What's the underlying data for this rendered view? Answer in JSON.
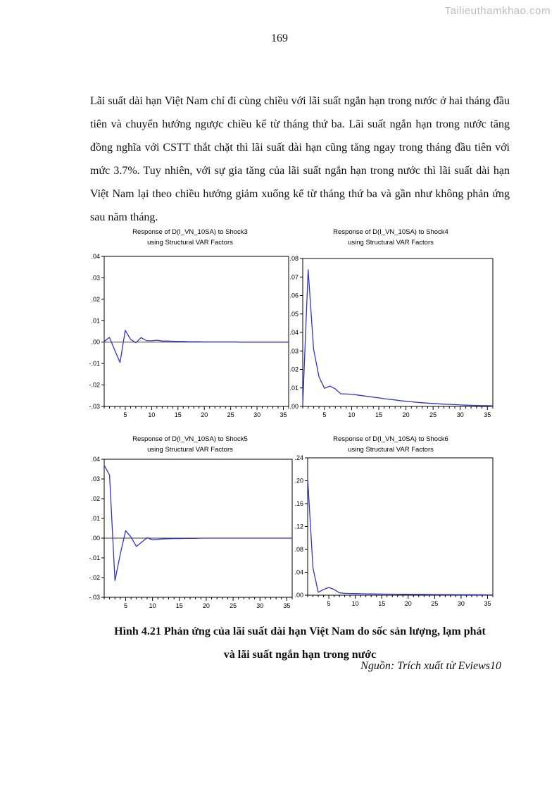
{
  "watermark": "Tailieuthamkhao.com",
  "page_number": "169",
  "paragraph": "Lãi suất dài hạn Việt Nam chỉ đi cùng chiều với lãi suất ngắn hạn trong nước ở hai tháng đầu tiên và chuyển hướng ngược chiều kể từ tháng thứ ba. Lãi suất ngắn hạn trong nước tăng đồng nghĩa với CSTT thắt chặt thì lãi suất dài hạn cũng tăng ngay trong tháng đầu tiên với mức 3.7%. Tuy nhiên, với sự gia tăng của lãi suất ngắn hạn trong nước thì lãi suất dài hạn Việt Nam lại theo chiều hướng giảm xuống kể từ tháng thứ ba và gần như không phản ứng sau năm tháng.",
  "figure": {
    "caption_line1": "Hình 4.21 Phản ứng của lãi suất dài hạn Việt Nam do sốc sản lượng, lạm phát",
    "caption_line2": "và lãi suất ngắn hạn trong nước",
    "source": "Nguồn: Trích xuất từ Eviews10"
  },
  "chart_data": [
    {
      "type": "line",
      "title": "Response of D(I_VN_10SA) to Shock3",
      "subtitle": "using Structural VAR Factors",
      "xlabel": "",
      "ylabel": "",
      "x_range": [
        1,
        36
      ],
      "xticks": [
        5,
        10,
        15,
        20,
        25,
        30,
        35
      ],
      "ylim": [
        -0.03,
        0.04
      ],
      "ytick_values": [
        0.04,
        0.03,
        0.02,
        0.01,
        0.0,
        -0.01,
        -0.02,
        -0.03
      ],
      "ytick_labels": [
        ".04",
        ".03",
        ".02",
        ".01",
        ".00",
        "-.01",
        "-.02",
        "-.03"
      ],
      "zero_line": true,
      "line_color": "#3232cd",
      "values": [
        0.0003,
        0.0022,
        -0.0038,
        -0.0095,
        0.0055,
        0.0013,
        -0.0003,
        0.0021,
        0.0007,
        0.0006,
        0.0009,
        0.0005,
        0.0005,
        0.0004,
        0.0003,
        0.0003,
        0.0002,
        0.0002,
        0.0002,
        0.0001,
        0.0001,
        0.0001,
        0.0001,
        0.0001,
        0.0001,
        0.0001,
        0,
        0,
        0,
        0,
        0,
        0,
        0,
        0,
        0,
        0
      ]
    },
    {
      "type": "line",
      "title": "Response of D(I_VN_10SA) to Shock4",
      "subtitle": "using Structural VAR Factors",
      "xlabel": "",
      "ylabel": "",
      "x_range": [
        1,
        36
      ],
      "xticks": [
        5,
        10,
        15,
        20,
        25,
        30,
        35
      ],
      "ylim": [
        0.0,
        0.08
      ],
      "ytick_values": [
        0.08,
        0.07,
        0.06,
        0.05,
        0.04,
        0.03,
        0.02,
        0.01,
        0.0
      ],
      "ytick_labels": [
        ".08",
        ".07",
        ".06",
        ".05",
        ".04",
        ".03",
        ".02",
        ".01",
        ".00"
      ],
      "zero_line": false,
      "line_color": "#3232cd",
      "values": [
        0.0008,
        0.074,
        0.031,
        0.016,
        0.0098,
        0.011,
        0.0095,
        0.0068,
        0.0067,
        0.0065,
        0.0062,
        0.0058,
        0.0054,
        0.005,
        0.0046,
        0.0042,
        0.0038,
        0.0035,
        0.0031,
        0.0028,
        0.0025,
        0.0022,
        0.002,
        0.0018,
        0.0016,
        0.0014,
        0.0012,
        0.0011,
        0.001,
        0.0008,
        0.0007,
        0.0006,
        0.0005,
        0.0004,
        0.0004,
        0.0003
      ]
    },
    {
      "type": "line",
      "title": "Response of D(I_VN_10SA) to Shock5",
      "subtitle": "using Structural VAR Factors",
      "xlabel": "",
      "ylabel": "",
      "x_range": [
        1,
        36
      ],
      "xticks": [
        5,
        10,
        15,
        20,
        25,
        30,
        35
      ],
      "ylim": [
        -0.03,
        0.04
      ],
      "ytick_values": [
        0.04,
        0.03,
        0.02,
        0.01,
        0.0,
        -0.01,
        -0.02,
        -0.03
      ],
      "ytick_labels": [
        ".04",
        ".03",
        ".02",
        ".01",
        ".00",
        "-.01",
        "-.02",
        "-.03"
      ],
      "zero_line": true,
      "line_color": "#3232cd",
      "values": [
        0.037,
        0.032,
        -0.0215,
        -0.008,
        0.0038,
        0.0005,
        -0.0042,
        -0.002,
        0.0002,
        -0.0009,
        -0.0006,
        -0.0004,
        -0.0003,
        -0.0002,
        -0.0002,
        -0.0001,
        -0.0001,
        -0.0001,
        0,
        0,
        0,
        0,
        0,
        0,
        0,
        0,
        0,
        0,
        0,
        0,
        0,
        0,
        0,
        0,
        0,
        0
      ]
    },
    {
      "type": "line",
      "title": "Response of D(I_VN_10SA) to Shock6",
      "subtitle": "using Structural VAR Factors",
      "xlabel": "",
      "ylabel": "",
      "x_range": [
        1,
        36
      ],
      "xticks": [
        5,
        10,
        15,
        20,
        25,
        30,
        35
      ],
      "ylim": [
        0.0,
        0.24
      ],
      "ytick_values": [
        0.24,
        0.2,
        0.16,
        0.12,
        0.08,
        0.04,
        0.0
      ],
      "ytick_labels": [
        ".24",
        ".20",
        ".16",
        ".12",
        ".08",
        ".04",
        ".00"
      ],
      "zero_line": false,
      "line_color": "#3232cd",
      "values": [
        0.205,
        0.048,
        0.005,
        0.01,
        0.0135,
        0.01,
        0.0042,
        0.0032,
        0.003,
        0.0028,
        0.0026,
        0.0024,
        0.0022,
        0.0021,
        0.002,
        0.0019,
        0.0018,
        0.0017,
        0.0016,
        0.0015,
        0.0014,
        0.0013,
        0.0013,
        0.0012,
        0.0011,
        0.0011,
        0.001,
        0.001,
        0.0009,
        0.0009,
        0.0008,
        0.0008,
        0.0007,
        0.0007,
        0.0006,
        0.0006
      ]
    }
  ]
}
